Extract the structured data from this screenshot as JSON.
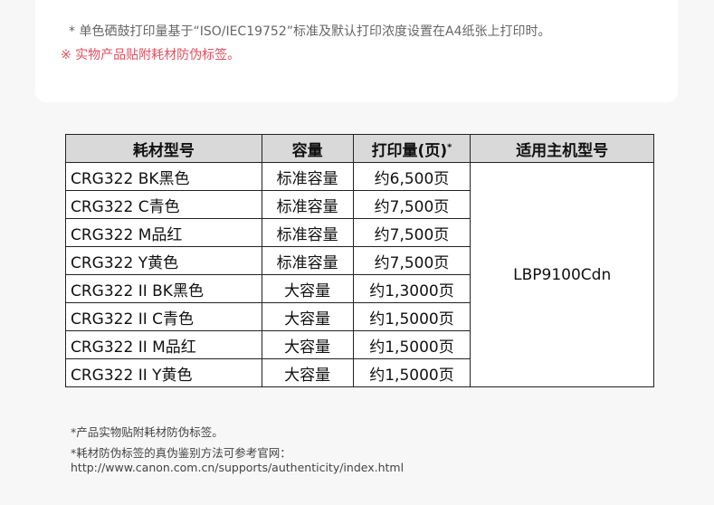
{
  "notes": {
    "yield_note": "* 单色硒鼓打印量基于“ISO/IEC19752”标准及默认打印浓度设置在A4纸张上打印时。",
    "label_note": "※ 实物产品贴附耗材防伪标签。"
  },
  "table": {
    "headers": [
      "耗材型号",
      "容量",
      "打印量(页)",
      "适用主机型号"
    ],
    "header_mark": "*",
    "rows": [
      {
        "model": "CRG322 BK黑色",
        "capacity": "标准容量",
        "yield": "约6,500页"
      },
      {
        "model": "CRG322 C青色",
        "capacity": "标准容量",
        "yield": "约7,500页"
      },
      {
        "model": "CRG322 M品红",
        "capacity": "标准容量",
        "yield": "约7,500页"
      },
      {
        "model": "CRG322 Y黄色",
        "capacity": "标准容量",
        "yield": "约7,500页"
      },
      {
        "model": "CRG322 II BK黑色",
        "capacity": "大容量",
        "yield": "约1,3000页"
      },
      {
        "model": "CRG322 II C青色",
        "capacity": "大容量",
        "yield": "约1,5000页"
      },
      {
        "model": "CRG322 II M品红",
        "capacity": "大容量",
        "yield": "约1,5000页"
      },
      {
        "model": "CRG322 II Y黄色",
        "capacity": "大容量",
        "yield": "约1,5000页"
      }
    ],
    "host": "LBP9100Cdn"
  },
  "footer": {
    "line1": "*产品实物贴附耗材防伪标签。",
    "line2": "*耗材防伪标签的真伪鉴别方法可参考官网：",
    "url": "http://www.canon.com.cn/supports/authenticity/index.html"
  },
  "colors": {
    "accent_red": "#e0505e",
    "header_bg": "#d9d9d9"
  }
}
